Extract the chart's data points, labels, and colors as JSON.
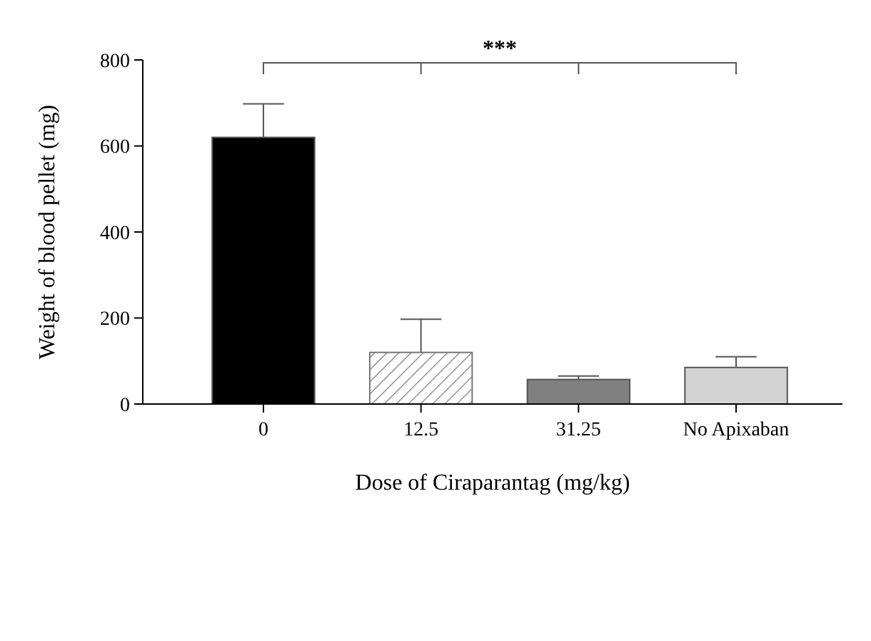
{
  "chart_data": {
    "type": "bar",
    "xlabel": "Dose of Ciraparantag (mg/kg)",
    "ylabel": "Weight of blood pellet (mg)",
    "categories": [
      "0",
      "12.5",
      "31.25",
      "No Apixaban"
    ],
    "values": [
      620,
      120,
      57,
      85
    ],
    "colors": [
      "#000000",
      "#777777",
      "#808080",
      "#d3d3d3"
    ],
    "errors": [
      [
        620,
        698
      ],
      [
        120,
        197
      ],
      [
        57,
        65
      ],
      [
        85,
        110
      ]
    ],
    "ylim": [
      0,
      800
    ],
    "yticks": [
      0,
      200,
      400,
      600,
      800
    ],
    "grid": false,
    "annotations": [
      "***"
    ]
  }
}
